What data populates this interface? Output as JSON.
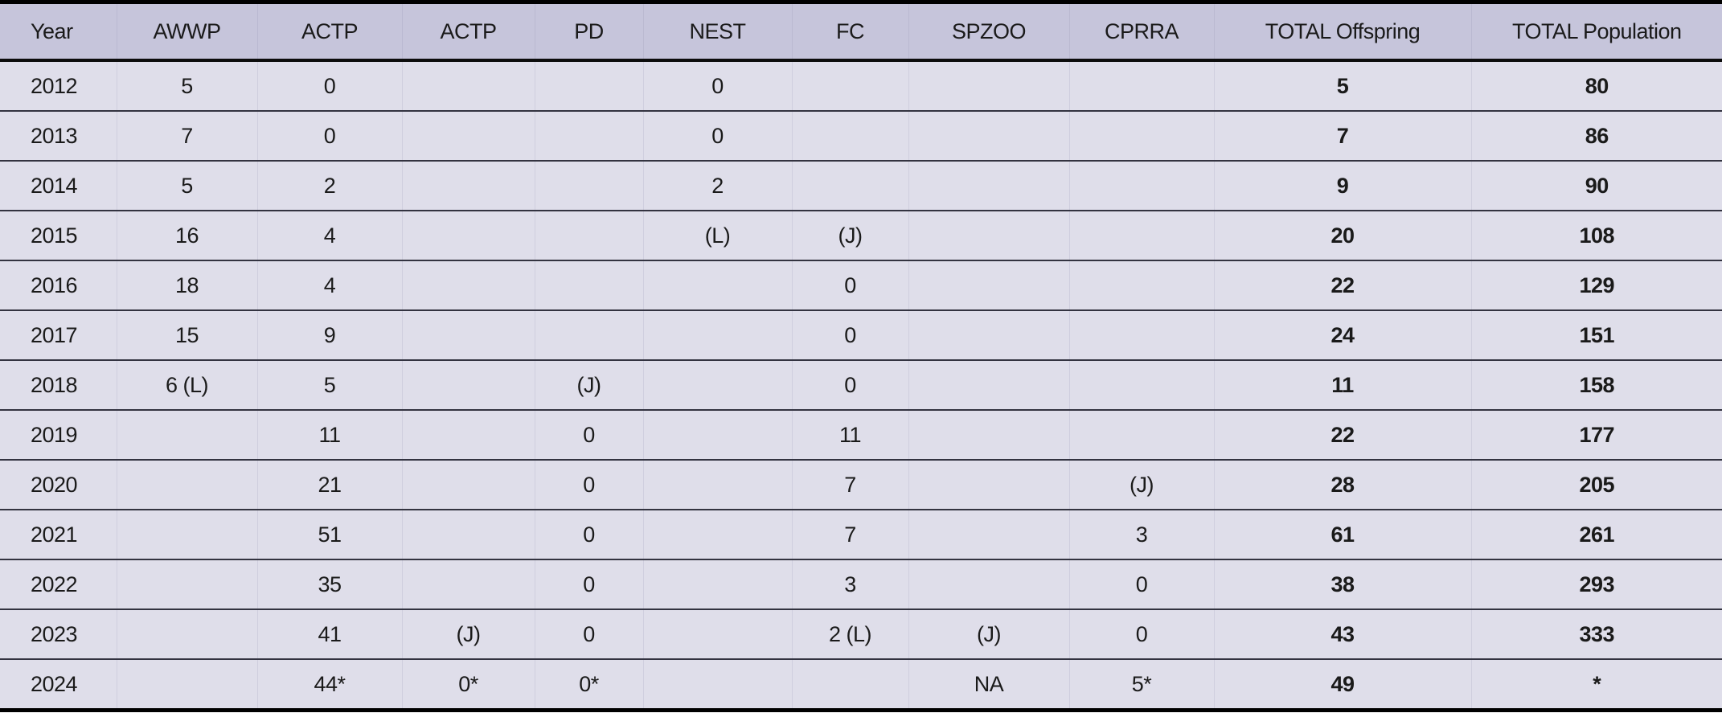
{
  "chart_data": {
    "type": "table",
    "columns": [
      "Year",
      "AWWP",
      "ACTP",
      "ACTP",
      "PD",
      "NEST",
      "FC",
      "SPZOO",
      "CPRRA",
      "TOTAL Offspring",
      "TOTAL Population"
    ],
    "rows": [
      [
        "2012",
        "5",
        "0",
        "",
        "",
        "0",
        "",
        "",
        "",
        "5",
        "80"
      ],
      [
        "2013",
        "7",
        "0",
        "",
        "",
        "0",
        "",
        "",
        "",
        "7",
        "86"
      ],
      [
        "2014",
        "5",
        "2",
        "",
        "",
        "2",
        "",
        "",
        "",
        "9",
        "90"
      ],
      [
        "2015",
        "16",
        "4",
        "",
        "",
        "(L)",
        "(J)",
        "",
        "",
        "20",
        "108"
      ],
      [
        "2016",
        "18",
        "4",
        "",
        "",
        "",
        "0",
        "",
        "",
        "22",
        "129"
      ],
      [
        "2017",
        "15",
        "9",
        "",
        "",
        "",
        "0",
        "",
        "",
        "24",
        "151"
      ],
      [
        "2018",
        "6 (L)",
        "5",
        "",
        "(J)",
        "",
        "0",
        "",
        "",
        "11",
        "158"
      ],
      [
        "2019",
        "",
        "11",
        "",
        "0",
        "",
        "11",
        "",
        "",
        "22",
        "177"
      ],
      [
        "2020",
        "",
        "21",
        "",
        "0",
        "",
        "7",
        "",
        "(J)",
        "28",
        "205"
      ],
      [
        "2021",
        "",
        "51",
        "",
        "0",
        "",
        "7",
        "",
        "3",
        "61",
        "261"
      ],
      [
        "2022",
        "",
        "35",
        "",
        "0",
        "",
        "3",
        "",
        "0",
        "38",
        "293"
      ],
      [
        "2023",
        "",
        "41",
        "(J)",
        "0",
        "",
        "2 (L)",
        "(J)",
        "0",
        "43",
        "333"
      ],
      [
        "2024",
        "",
        "44*",
        "0*",
        "0*",
        "",
        "",
        "NA",
        "5*",
        "49",
        "*"
      ]
    ],
    "bold_columns": [
      9,
      10
    ],
    "layout_hints": {
      "first_column_align": "left",
      "other_columns_align": "center",
      "grid": "horizontal-rules"
    }
  },
  "colors": {
    "header_bg": "#c6c5db",
    "row_bg": "#dfdeea",
    "row_rule": "#333340",
    "frame": "#000000",
    "text": "#1a1a1a"
  }
}
